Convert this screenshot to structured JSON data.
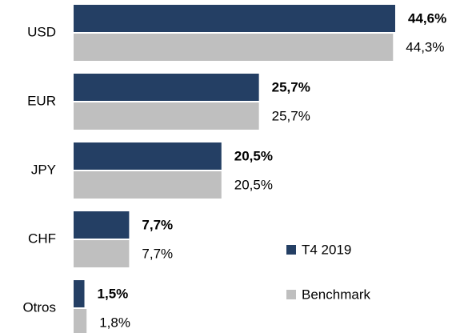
{
  "chart_data": {
    "type": "hbar",
    "categories": [
      "USD",
      "EUR",
      "JPY",
      "CHF",
      "Otros"
    ],
    "series": [
      {
        "name": "T4 2019",
        "color": "#243f64",
        "values": [
          44.6,
          25.7,
          20.5,
          7.7,
          1.5
        ],
        "value_labels": [
          "44,6%",
          "25,7%",
          "20,5%",
          "7,7%",
          "1,5%"
        ]
      },
      {
        "name": "Benchmark",
        "color": "#bfbfbf",
        "values": [
          44.3,
          25.7,
          20.5,
          7.7,
          1.8
        ],
        "value_labels": [
          "44,3%",
          "25,7%",
          "20,5%",
          "7,7%",
          "1,8%"
        ]
      }
    ],
    "legend": "bottom-right"
  }
}
